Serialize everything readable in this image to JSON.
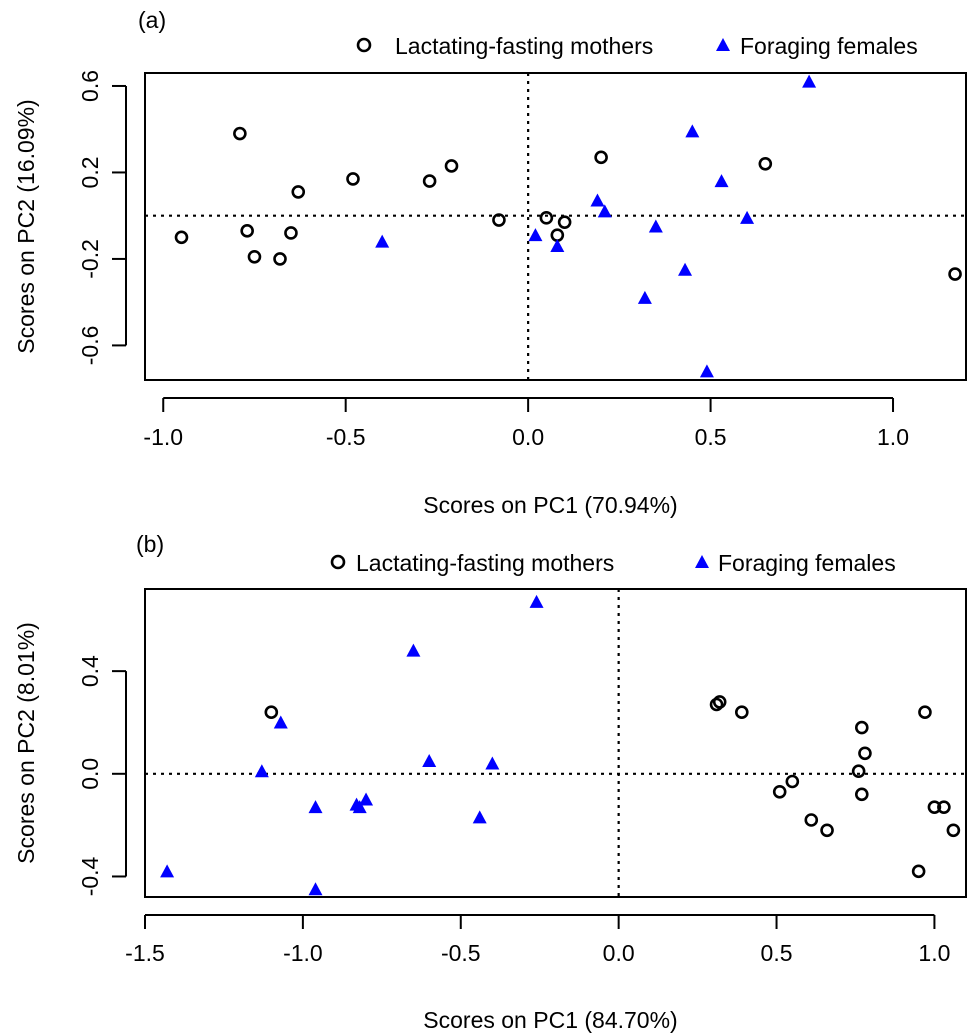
{
  "colors": {
    "mothers": "#000000",
    "foraging": "#0000ff",
    "background": "#ffffff"
  },
  "chart_data": [
    {
      "type": "scatter",
      "panel_label": "(a)",
      "xlabel": "Scores on PC1 (70.94%)",
      "ylabel": "Scores on PC2 (16.09%)",
      "xlim": [
        -1.05,
        1.2
      ],
      "ylim": [
        -0.76,
        0.66
      ],
      "xticks": [
        -1.0,
        -0.5,
        0.0,
        0.5,
        1.0
      ],
      "xtick_labels": [
        "-1.0",
        "-0.5",
        "0.0",
        "0.5",
        "1.0"
      ],
      "yticks": [
        -0.6,
        -0.2,
        0.2,
        0.6
      ],
      "ytick_labels": [
        "-0.6",
        "-0.2",
        "0.2",
        "0.6"
      ],
      "reference_lines": {
        "x": 0,
        "y": 0
      },
      "legend_position": "top, above plot",
      "series": [
        {
          "name": "Lactating-fasting mothers",
          "marker": "open-circle",
          "color": "#000000",
          "points": [
            [
              -0.95,
              -0.1
            ],
            [
              -0.79,
              0.38
            ],
            [
              -0.77,
              -0.07
            ],
            [
              -0.75,
              -0.19
            ],
            [
              -0.68,
              -0.2
            ],
            [
              -0.65,
              -0.08
            ],
            [
              -0.63,
              0.11
            ],
            [
              -0.48,
              0.17
            ],
            [
              -0.27,
              0.16
            ],
            [
              -0.21,
              0.23
            ],
            [
              -0.08,
              -0.02
            ],
            [
              0.05,
              -0.01
            ],
            [
              0.08,
              -0.09
            ],
            [
              0.1,
              -0.03
            ],
            [
              0.2,
              0.27
            ],
            [
              0.65,
              0.24
            ],
            [
              1.17,
              -0.27
            ]
          ]
        },
        {
          "name": "Foraging females",
          "marker": "filled-triangle",
          "color": "#0000ff",
          "points": [
            [
              -0.4,
              -0.12
            ],
            [
              0.02,
              -0.09
            ],
            [
              0.08,
              -0.14
            ],
            [
              0.19,
              0.07
            ],
            [
              0.21,
              0.02
            ],
            [
              0.32,
              -0.38
            ],
            [
              0.35,
              -0.05
            ],
            [
              0.43,
              -0.25
            ],
            [
              0.45,
              0.39
            ],
            [
              0.49,
              -0.72
            ],
            [
              0.53,
              0.16
            ],
            [
              0.6,
              -0.01
            ],
            [
              0.77,
              0.62
            ]
          ]
        }
      ]
    },
    {
      "type": "scatter",
      "panel_label": "(b)",
      "xlabel": "Scores on PC1 (84.70%)",
      "ylabel": "Scores on PC2 (8.01%)",
      "xlim": [
        -1.5,
        1.1
      ],
      "ylim": [
        -0.48,
        0.72
      ],
      "xticks": [
        -1.5,
        -1.0,
        -0.5,
        0.0,
        0.5,
        1.0
      ],
      "xtick_labels": [
        "-1.5",
        "-1.0",
        "-0.5",
        "0.0",
        "0.5",
        "1.0"
      ],
      "yticks": [
        -0.4,
        0.0,
        0.4
      ],
      "ytick_labels": [
        "-0.4",
        "0.0",
        "0.4"
      ],
      "reference_lines": {
        "x": 0,
        "y": 0
      },
      "legend_position": "top, above plot",
      "series": [
        {
          "name": "Lactating-fasting mothers",
          "marker": "open-circle",
          "color": "#000000",
          "points": [
            [
              -1.1,
              0.24
            ],
            [
              0.31,
              0.27
            ],
            [
              0.32,
              0.28
            ],
            [
              0.39,
              0.24
            ],
            [
              0.51,
              -0.07
            ],
            [
              0.55,
              -0.03
            ],
            [
              0.61,
              -0.18
            ],
            [
              0.66,
              -0.22
            ],
            [
              0.76,
              0.01
            ],
            [
              0.77,
              0.18
            ],
            [
              0.77,
              -0.08
            ],
            [
              0.78,
              0.08
            ],
            [
              0.95,
              -0.38
            ],
            [
              0.97,
              0.24
            ],
            [
              1.0,
              -0.13
            ],
            [
              1.03,
              -0.13
            ],
            [
              1.06,
              -0.22
            ]
          ]
        },
        {
          "name": "Foraging females",
          "marker": "filled-triangle",
          "color": "#0000ff",
          "points": [
            [
              -1.43,
              -0.38
            ],
            [
              -1.13,
              0.01
            ],
            [
              -1.07,
              0.2
            ],
            [
              -0.96,
              -0.13
            ],
            [
              -0.96,
              -0.45
            ],
            [
              -0.83,
              -0.12
            ],
            [
              -0.82,
              -0.13
            ],
            [
              -0.8,
              -0.1
            ],
            [
              -0.65,
              0.48
            ],
            [
              -0.6,
              0.05
            ],
            [
              -0.44,
              -0.17
            ],
            [
              -0.4,
              0.04
            ],
            [
              -0.26,
              0.67
            ]
          ]
        }
      ]
    }
  ]
}
